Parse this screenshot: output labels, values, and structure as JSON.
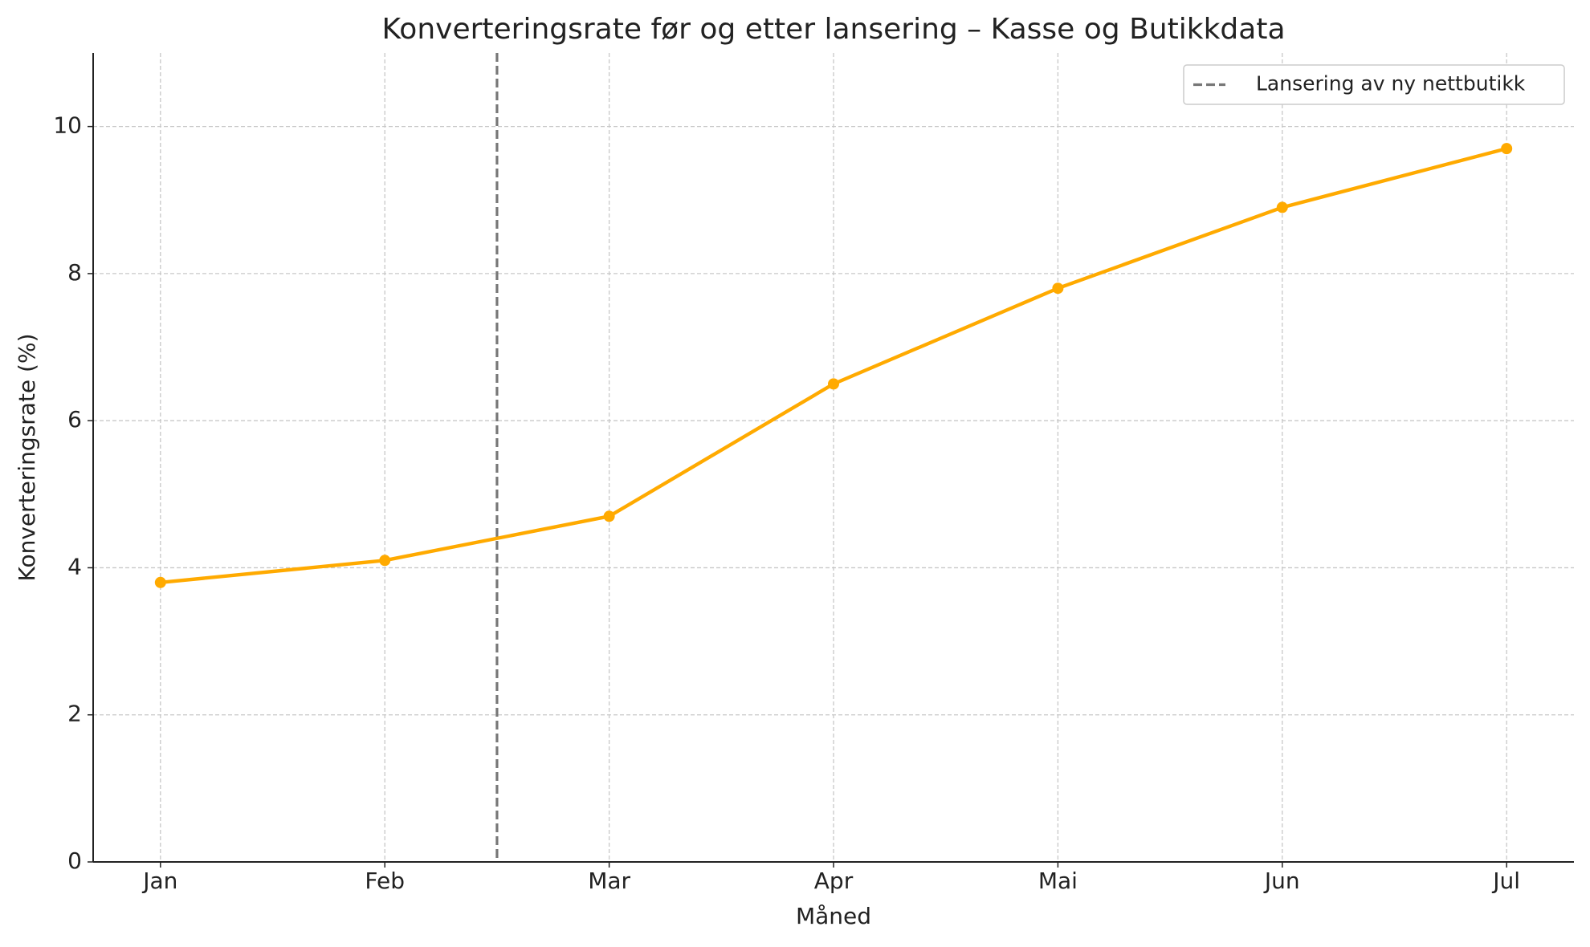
{
  "chart_data": {
    "type": "line",
    "title": "Konverteringsrate før og etter lansering – Kasse og Butikkdata",
    "x_label": "Måned",
    "y_label": "Konverteringsrate (%)",
    "categories": [
      "Jan",
      "Feb",
      "Mar",
      "Apr",
      "Mai",
      "Jun",
      "Jul"
    ],
    "values": [
      3.8,
      4.1,
      4.7,
      6.5,
      7.8,
      8.9,
      9.7
    ],
    "color": "#ffaa00",
    "xlim": [
      -0.3,
      6.3
    ],
    "ylim": [
      0,
      11
    ],
    "yticks": [
      0,
      2,
      4,
      6,
      8,
      10
    ],
    "grid": true,
    "vline": {
      "x": 1.5,
      "label": "Lansering av ny nettbutikk",
      "color": "#777777"
    },
    "legend": "upper right"
  }
}
